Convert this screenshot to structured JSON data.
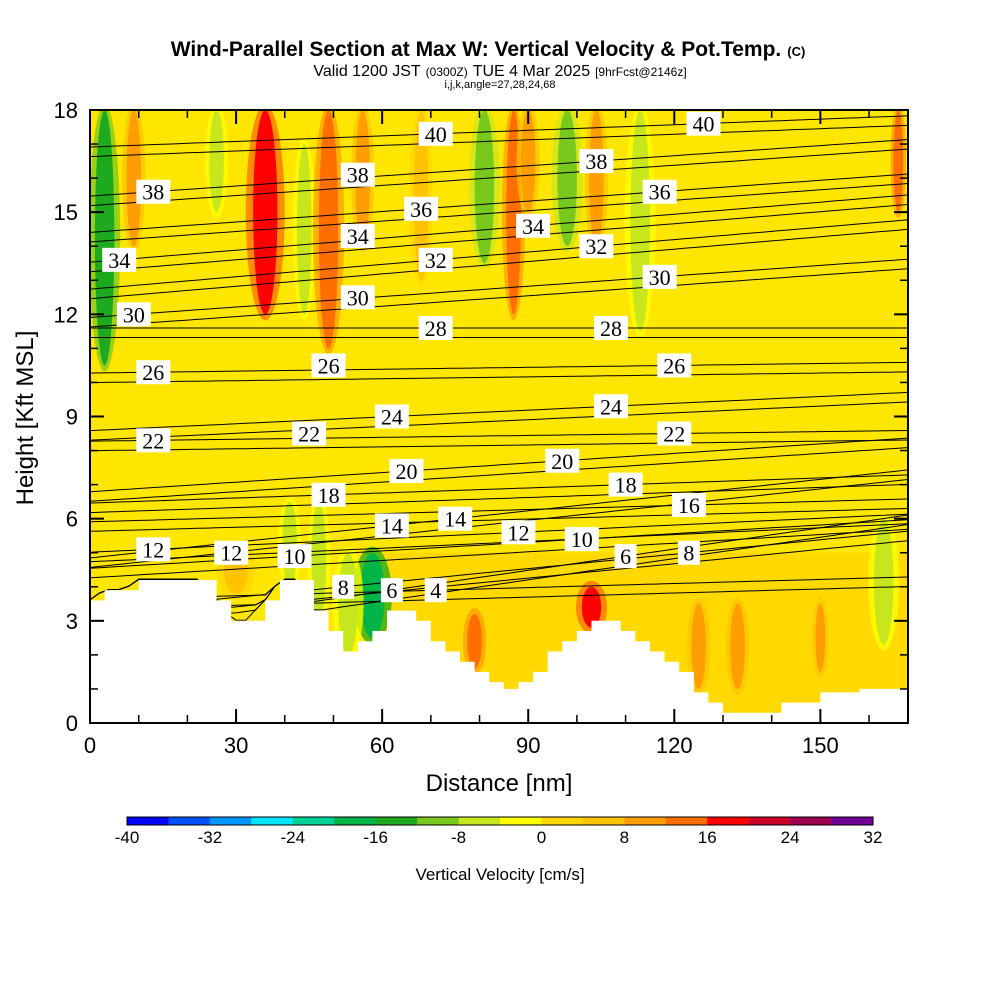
{
  "chart_data": {
    "type": "heatmap",
    "title": "Wind-Parallel Section at Max W: Vertical Velocity & Pot.Temp.",
    "title_mark": "(C)",
    "subtitle_parts": [
      "Valid 1200 JST",
      "(0300Z)",
      "TUE 4 Mar 2025",
      "[9hrFcst@2146z]"
    ],
    "subtitle2": "i,j,k,angle=27,28,24,68",
    "xlabel": "Distance [nm]",
    "ylabel": "Height [Kft MSL]",
    "xlim": [
      0,
      168
    ],
    "ylim": [
      0,
      18
    ],
    "xticks": [
      0,
      30,
      60,
      90,
      120,
      150
    ],
    "yticks": [
      0,
      3,
      6,
      9,
      12,
      15,
      18
    ],
    "grid": false,
    "colorbar": {
      "label": "Vertical Velocity [cm/s]",
      "ticks": [
        -40,
        -32,
        -24,
        -16,
        -8,
        0,
        8,
        16,
        24,
        32
      ],
      "bins": [
        {
          "from": -40,
          "to": -36,
          "color": "#0000ff"
        },
        {
          "from": -36,
          "to": -32,
          "color": "#0050ff"
        },
        {
          "from": -32,
          "to": -28,
          "color": "#0096ff"
        },
        {
          "from": -28,
          "to": -24,
          "color": "#00e6ff"
        },
        {
          "from": -24,
          "to": -20,
          "color": "#00d296"
        },
        {
          "from": -20,
          "to": -16,
          "color": "#00b446"
        },
        {
          "from": -16,
          "to": -12,
          "color": "#1eaa1e"
        },
        {
          "from": -12,
          "to": -8,
          "color": "#78c81e"
        },
        {
          "from": -8,
          "to": -4,
          "color": "#c8e61e"
        },
        {
          "from": -4,
          "to": 0,
          "color": "#ffff00"
        },
        {
          "from": 0,
          "to": 4,
          "color": "#ffd700"
        },
        {
          "from": 4,
          "to": 8,
          "color": "#ffc300"
        },
        {
          "from": 8,
          "to": 12,
          "color": "#ff9e00"
        },
        {
          "from": 12,
          "to": 16,
          "color": "#ff6e00"
        },
        {
          "from": 16,
          "to": 20,
          "color": "#ff0000"
        },
        {
          "from": 20,
          "to": 24,
          "color": "#c80028"
        },
        {
          "from": 24,
          "to": 28,
          "color": "#a00050"
        },
        {
          "from": 28,
          "to": 32,
          "color": "#6e0096"
        }
      ]
    },
    "vertical_velocity_features": [
      {
        "x": 3,
        "y_range": [
          10.5,
          18
        ],
        "width": 4,
        "w": -14
      },
      {
        "x": 9,
        "y_range": [
          14,
          18
        ],
        "width": 3,
        "w": 10
      },
      {
        "x": 26,
        "y_range": [
          15,
          18
        ],
        "width": 3,
        "w": -6
      },
      {
        "x": 36,
        "y_range": [
          12,
          18
        ],
        "width": 5,
        "w": 16
      },
      {
        "x": 44,
        "y_range": [
          12,
          17
        ],
        "width": 3,
        "w": -8
      },
      {
        "x": 49,
        "y_range": [
          11,
          18
        ],
        "width": 4,
        "w": 14
      },
      {
        "x": 58,
        "y_range": [
          2.5,
          5
        ],
        "width": 5,
        "w": -18
      },
      {
        "x": 53,
        "y_range": [
          2,
          5
        ],
        "width": 4,
        "w": -8
      },
      {
        "x": 47,
        "y_range": [
          3,
          6.5
        ],
        "width": 3,
        "w": -6
      },
      {
        "x": 56,
        "y_range": [
          14,
          18
        ],
        "width": 3,
        "w": 8
      },
      {
        "x": 68,
        "y_range": [
          13,
          18
        ],
        "width": 3,
        "w": 6
      },
      {
        "x": 81,
        "y_range": [
          13.5,
          18
        ],
        "width": 4,
        "w": -10
      },
      {
        "x": 87,
        "y_range": [
          12,
          18
        ],
        "width": 3,
        "w": 12
      },
      {
        "x": 90,
        "y_range": [
          15,
          18
        ],
        "width": 3,
        "w": 10
      },
      {
        "x": 98,
        "y_range": [
          14,
          18
        ],
        "width": 4,
        "w": -12
      },
      {
        "x": 104,
        "y_range": [
          14,
          18
        ],
        "width": 3,
        "w": 8
      },
      {
        "x": 113,
        "y_range": [
          11.5,
          18
        ],
        "width": 4,
        "w": -8
      },
      {
        "x": 103,
        "y_range": [
          2.8,
          4
        ],
        "width": 4,
        "w": 16
      },
      {
        "x": 79,
        "y_range": [
          1.6,
          3.2
        ],
        "width": 3,
        "w": 12
      },
      {
        "x": 133,
        "y_range": [
          1,
          3.5
        ],
        "width": 3,
        "w": 10
      },
      {
        "x": 125,
        "y_range": [
          1,
          3.5
        ],
        "width": 3,
        "w": 8
      },
      {
        "x": 150,
        "y_range": [
          1.5,
          3.5
        ],
        "width": 2,
        "w": 10
      },
      {
        "x": 163,
        "y_range": [
          2.3,
          6
        ],
        "width": 4,
        "w": -6
      },
      {
        "x": 166,
        "y_range": [
          15,
          18
        ],
        "width": 2,
        "w": 14
      },
      {
        "x": 30,
        "y_range": [
          3.8,
          5.2
        ],
        "width": 5,
        "w": 6
      },
      {
        "x": 41,
        "y_range": [
          4,
          6.5
        ],
        "width": 3,
        "w": -6
      }
    ],
    "terrain": {
      "x": [
        0,
        3,
        7,
        10,
        14,
        18,
        22,
        26,
        29,
        32,
        36,
        39,
        43,
        46,
        49,
        52,
        55,
        58,
        61,
        64,
        67,
        70,
        73,
        76,
        79,
        82,
        85,
        88,
        91,
        94,
        97,
        100,
        103,
        106,
        109,
        112,
        115,
        118,
        121,
        124,
        127,
        130,
        134,
        138,
        142,
        146,
        150,
        154,
        158,
        162,
        168
      ],
      "height": [
        3.6,
        3.9,
        3.9,
        4.2,
        4.2,
        4.2,
        4.2,
        3.6,
        3.0,
        3.0,
        3.6,
        4.2,
        4.2,
        3.3,
        2.7,
        2.1,
        2.4,
        2.7,
        3.3,
        3.3,
        3.0,
        2.4,
        2.1,
        1.8,
        1.5,
        1.2,
        1.0,
        1.2,
        1.5,
        2.1,
        2.4,
        2.7,
        3.0,
        3.0,
        2.7,
        2.4,
        2.1,
        1.8,
        1.5,
        0.9,
        0.6,
        0.3,
        0.3,
        0.3,
        0.6,
        0.6,
        0.9,
        0.9,
        1.0,
        1.0,
        1.0
      ]
    },
    "theta_labels": [
      {
        "value": "40",
        "x": 71,
        "y": 17.3
      },
      {
        "value": "40",
        "x": 126,
        "y": 17.6
      },
      {
        "value": "38",
        "x": 13,
        "y": 15.6
      },
      {
        "value": "38",
        "x": 55,
        "y": 16.1
      },
      {
        "value": "38",
        "x": 104,
        "y": 16.5
      },
      {
        "value": "36",
        "x": 68,
        "y": 15.1
      },
      {
        "value": "36",
        "x": 117,
        "y": 15.6
      },
      {
        "value": "34",
        "x": 6,
        "y": 13.6
      },
      {
        "value": "34",
        "x": 55,
        "y": 14.3
      },
      {
        "value": "34",
        "x": 91,
        "y": 14.6
      },
      {
        "value": "32",
        "x": 71,
        "y": 13.6
      },
      {
        "value": "32",
        "x": 104,
        "y": 14.0
      },
      {
        "value": "30",
        "x": 9,
        "y": 12.0
      },
      {
        "value": "30",
        "x": 55,
        "y": 12.5
      },
      {
        "value": "30",
        "x": 117,
        "y": 13.1
      },
      {
        "value": "28",
        "x": 71,
        "y": 11.6
      },
      {
        "value": "28",
        "x": 107,
        "y": 11.6
      },
      {
        "value": "26",
        "x": 13,
        "y": 10.3
      },
      {
        "value": "26",
        "x": 49,
        "y": 10.5
      },
      {
        "value": "26",
        "x": 120,
        "y": 10.5
      },
      {
        "value": "24",
        "x": 62,
        "y": 9.0
      },
      {
        "value": "24",
        "x": 107,
        "y": 9.3
      },
      {
        "value": "22",
        "x": 13,
        "y": 8.3
      },
      {
        "value": "22",
        "x": 45,
        "y": 8.5
      },
      {
        "value": "22",
        "x": 120,
        "y": 8.5
      },
      {
        "value": "20",
        "x": 65,
        "y": 7.4
      },
      {
        "value": "20",
        "x": 97,
        "y": 7.7
      },
      {
        "value": "18",
        "x": 49,
        "y": 6.7
      },
      {
        "value": "18",
        "x": 110,
        "y": 7.0
      },
      {
        "value": "16",
        "x": 123,
        "y": 6.4
      },
      {
        "value": "14",
        "x": 62,
        "y": 5.8
      },
      {
        "value": "14",
        "x": 75,
        "y": 6.0
      },
      {
        "value": "12",
        "x": 13,
        "y": 5.1
      },
      {
        "value": "12",
        "x": 29,
        "y": 5.0
      },
      {
        "value": "12",
        "x": 88,
        "y": 5.6
      },
      {
        "value": "10",
        "x": 42,
        "y": 4.9
      },
      {
        "value": "10",
        "x": 101,
        "y": 5.4
      },
      {
        "value": "8",
        "x": 52,
        "y": 4.0
      },
      {
        "value": "8",
        "x": 123,
        "y": 5.0
      },
      {
        "value": "6",
        "x": 62,
        "y": 3.9
      },
      {
        "value": "6",
        "x": 110,
        "y": 4.9
      },
      {
        "value": "4",
        "x": 71,
        "y": 3.9
      }
    ]
  }
}
